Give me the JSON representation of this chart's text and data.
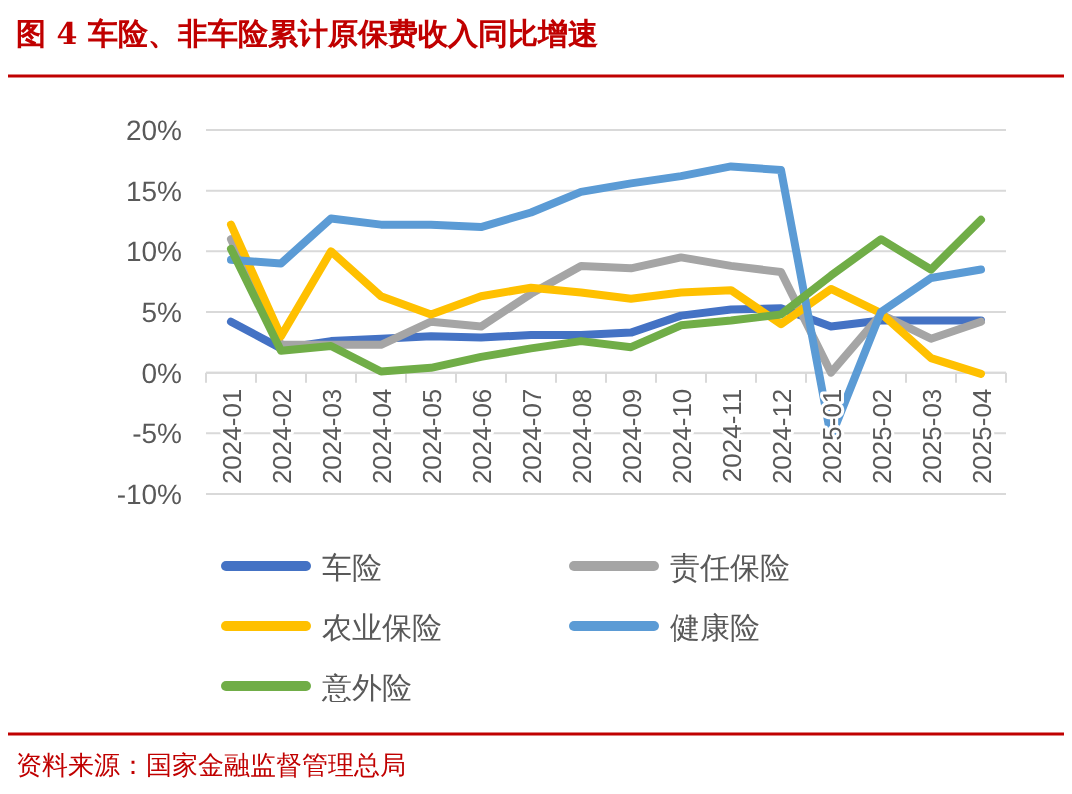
{
  "chart_data": {
    "type": "line",
    "title": "图 4   车险、非车险累计原保费收入同比增速",
    "categories": [
      "2024-01",
      "2024-02",
      "2024-03",
      "2024-04",
      "2024-05",
      "2024-06",
      "2024-07",
      "2024-08",
      "2024-09",
      "2024-10",
      "2024-11",
      "2024-12",
      "2025-01",
      "2025-02",
      "2025-03",
      "2025-04"
    ],
    "series": [
      {
        "name": "车险",
        "color": "#4472c4",
        "values": [
          4.2,
          2.0,
          2.6,
          2.8,
          3.0,
          2.9,
          3.1,
          3.1,
          3.3,
          4.7,
          5.2,
          5.3,
          3.8,
          4.3,
          4.3,
          4.3
        ]
      },
      {
        "name": "责任保险",
        "color": "#a5a5a5",
        "values": [
          11.0,
          2.3,
          2.3,
          2.3,
          4.2,
          3.8,
          6.5,
          8.8,
          8.6,
          9.5,
          8.8,
          8.3,
          0.0,
          4.8,
          2.8,
          4.2
        ]
      },
      {
        "name": "农业保险",
        "color": "#ffc000",
        "values": [
          12.2,
          3.0,
          10.0,
          6.3,
          4.8,
          6.3,
          7.0,
          6.6,
          6.1,
          6.6,
          6.8,
          4.0,
          6.9,
          4.9,
          1.2,
          -0.1
        ]
      },
      {
        "name": "健康险",
        "color": "#5b9bd5",
        "values": [
          9.3,
          9.0,
          12.7,
          12.2,
          12.2,
          12.0,
          13.2,
          14.9,
          15.6,
          16.2,
          17.0,
          16.7,
          -5.3,
          5.0,
          7.8,
          8.5
        ]
      },
      {
        "name": "意外险",
        "color": "#70ad47",
        "values": [
          10.2,
          1.8,
          2.2,
          0.1,
          0.4,
          1.3,
          2.0,
          2.6,
          2.1,
          3.9,
          4.3,
          4.8,
          8.0,
          11.0,
          8.5,
          12.6
        ]
      }
    ],
    "ylim": [
      -10,
      20
    ],
    "yticks": [
      {
        "value": -10,
        "label": "-10%"
      },
      {
        "value": -5,
        "label": "-5%"
      },
      {
        "value": 0,
        "label": "0%"
      },
      {
        "value": 5,
        "label": "5%"
      },
      {
        "value": 10,
        "label": "10%"
      },
      {
        "value": 15,
        "label": "15%"
      },
      {
        "value": 20,
        "label": "20%"
      }
    ],
    "grid": "y",
    "legend": "bottom",
    "annotations": [
      "资料来源：国家金融监督管理总局"
    ]
  }
}
